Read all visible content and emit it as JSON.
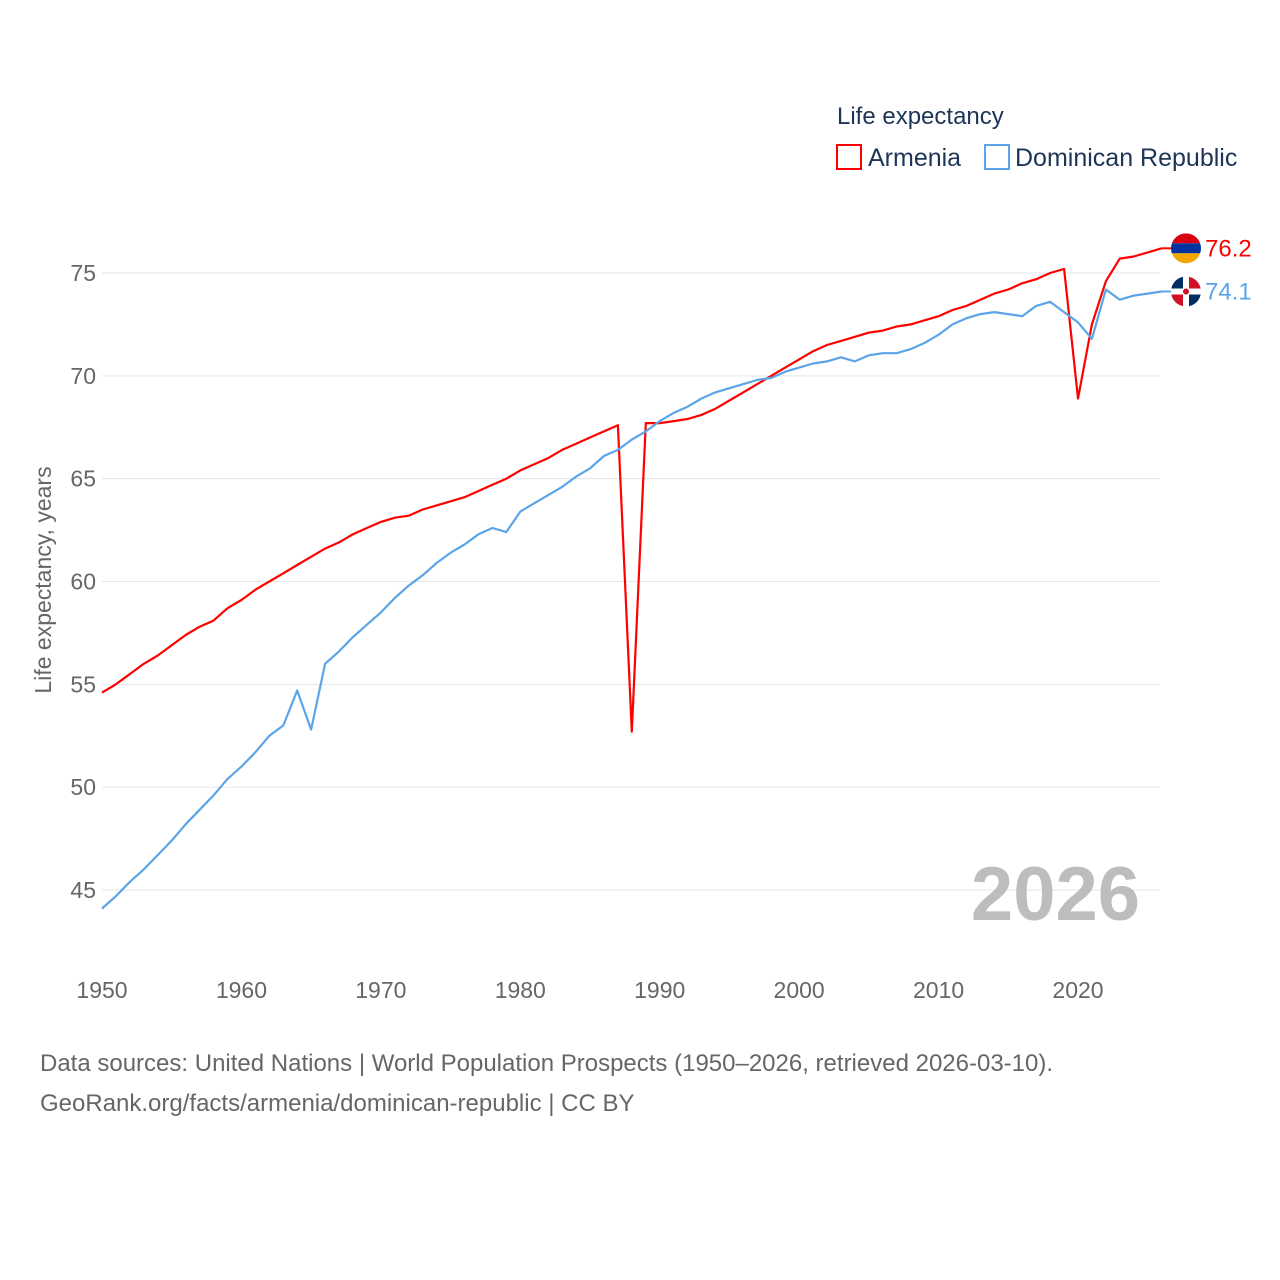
{
  "chart_data": {
    "type": "line",
    "title": "",
    "legend_title": "Life expectancy",
    "legend_position": "top-right",
    "ylabel": "Life expectancy, years",
    "xlabel": "",
    "xlim": [
      1950,
      2026
    ],
    "ylim": [
      42.5,
      77.5
    ],
    "x_ticks": [
      1950,
      1960,
      1970,
      1980,
      1990,
      2000,
      2010,
      2020
    ],
    "y_ticks": [
      45,
      50,
      55,
      60,
      65,
      70,
      75
    ],
    "grid": "horizontal",
    "year_watermark": "2026",
    "start_year": 1950,
    "series": [
      {
        "name": "Armenia",
        "color": "#ff0000",
        "end_label": "76.2",
        "flag": "armenia-flag",
        "values": [
          54.6,
          55.0,
          55.5,
          56.0,
          56.4,
          56.9,
          57.4,
          57.8,
          58.1,
          58.7,
          59.1,
          59.6,
          60.0,
          60.4,
          60.8,
          61.2,
          61.6,
          61.9,
          62.3,
          62.6,
          62.9,
          63.1,
          63.2,
          63.5,
          63.7,
          63.9,
          64.1,
          64.4,
          64.7,
          65.0,
          65.4,
          65.7,
          66.0,
          66.4,
          66.7,
          67.0,
          67.3,
          67.6,
          52.7,
          67.7,
          67.7,
          67.8,
          67.9,
          68.1,
          68.4,
          68.8,
          69.2,
          69.6,
          70.0,
          70.4,
          70.8,
          71.2,
          71.5,
          71.7,
          71.9,
          72.1,
          72.2,
          72.4,
          72.5,
          72.7,
          72.9,
          73.2,
          73.4,
          73.7,
          74.0,
          74.2,
          74.5,
          74.7,
          75.0,
          75.2,
          68.9,
          72.5,
          74.6,
          75.7,
          75.8,
          76.0,
          76.2
        ]
      },
      {
        "name": "Dominican Republic",
        "color": "#5ba4e8",
        "end_label": "74.1",
        "flag": "dominican-republic-flag",
        "values": [
          44.1,
          44.7,
          45.4,
          46.0,
          46.7,
          47.4,
          48.2,
          48.9,
          49.6,
          50.4,
          51.0,
          51.7,
          52.5,
          53.0,
          54.7,
          52.8,
          56.0,
          56.6,
          57.3,
          57.9,
          58.5,
          59.2,
          59.8,
          60.3,
          60.9,
          61.4,
          61.8,
          62.3,
          62.6,
          62.4,
          63.4,
          63.8,
          64.2,
          64.6,
          65.1,
          65.5,
          66.1,
          66.4,
          66.9,
          67.3,
          67.8,
          68.2,
          68.5,
          68.9,
          69.2,
          69.4,
          69.6,
          69.8,
          69.9,
          70.2,
          70.4,
          70.6,
          70.7,
          70.9,
          70.7,
          71.0,
          71.1,
          71.1,
          71.3,
          71.6,
          72.0,
          72.5,
          72.8,
          73.0,
          73.1,
          73.0,
          72.9,
          73.4,
          73.6,
          73.1,
          72.6,
          71.8,
          74.2,
          73.7,
          73.9,
          74.0,
          74.1
        ]
      }
    ]
  },
  "source": {
    "line1": "Data sources: United Nations | World Population Prospects (1950–2026, retrieved 2026-03-10).",
    "line2": "GeoRank.org/facts/armenia/dominican-republic | CC BY"
  }
}
